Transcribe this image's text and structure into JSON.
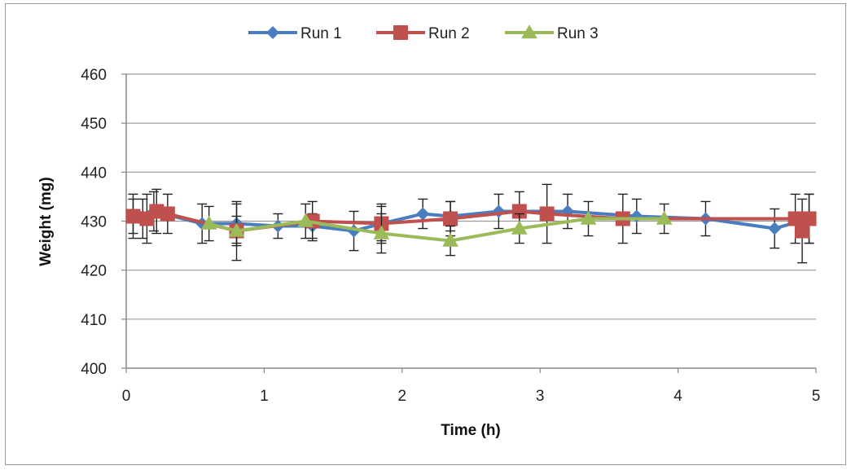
{
  "chart_data": {
    "type": "line",
    "title": "",
    "xlabel": "Time (h)",
    "ylabel": "Weight (mg)",
    "xlim": [
      0,
      5
    ],
    "ylim": [
      400,
      460
    ],
    "x_ticks": [
      "0",
      "1",
      "2",
      "3",
      "4",
      "5"
    ],
    "y_ticks": [
      "400",
      "410",
      "420",
      "430",
      "440",
      "450",
      "460"
    ],
    "grid": "horizontal",
    "legend_position": "top",
    "error_bars": true,
    "series": [
      {
        "name": "Run 1",
        "color": "#4a7dbf",
        "marker": "diamond",
        "points": [
          {
            "x": 0.05,
            "y": 431,
            "err": 3.5
          },
          {
            "x": 0.12,
            "y": 430.5,
            "err": 4
          },
          {
            "x": 0.2,
            "y": 432,
            "err": 4
          },
          {
            "x": 0.55,
            "y": 429.5,
            "err": 4
          },
          {
            "x": 0.8,
            "y": 429.5,
            "err": 4
          },
          {
            "x": 1.1,
            "y": 429,
            "err": 2.5
          },
          {
            "x": 1.35,
            "y": 429,
            "err": 2.5
          },
          {
            "x": 1.65,
            "y": 428,
            "err": 4
          },
          {
            "x": 1.85,
            "y": 429.5,
            "err": 3.5
          },
          {
            "x": 2.15,
            "y": 431.5,
            "err": 3
          },
          {
            "x": 2.35,
            "y": 431,
            "err": 3
          },
          {
            "x": 2.7,
            "y": 432,
            "err": 3.5
          },
          {
            "x": 3.2,
            "y": 432,
            "err": 3.5
          },
          {
            "x": 3.7,
            "y": 431,
            "err": 3.5
          },
          {
            "x": 4.2,
            "y": 430.5,
            "err": 3.5
          },
          {
            "x": 4.7,
            "y": 428.5,
            "err": 4
          },
          {
            "x": 4.95,
            "y": 430.5,
            "err": 5
          }
        ]
      },
      {
        "name": "Run 2",
        "color": "#c0504d",
        "marker": "square",
        "points": [
          {
            "x": 0.05,
            "y": 431,
            "err": 4.5
          },
          {
            "x": 0.15,
            "y": 430.5,
            "err": 5
          },
          {
            "x": 0.22,
            "y": 432,
            "err": 4.5
          },
          {
            "x": 0.3,
            "y": 431.5,
            "err": 4
          },
          {
            "x": 0.8,
            "y": 428,
            "err": 6
          },
          {
            "x": 1.35,
            "y": 430,
            "err": 4
          },
          {
            "x": 1.85,
            "y": 429.5,
            "err": 4
          },
          {
            "x": 2.35,
            "y": 430.5,
            "err": 3.5
          },
          {
            "x": 2.85,
            "y": 432,
            "err": 4
          },
          {
            "x": 3.05,
            "y": 431.5,
            "err": 6
          },
          {
            "x": 3.6,
            "y": 430.5,
            "err": 5
          },
          {
            "x": 4.85,
            "y": 430.5,
            "err": 5
          },
          {
            "x": 4.9,
            "y": 428,
            "err": 6.5
          },
          {
            "x": 4.95,
            "y": 430.5,
            "err": 5
          }
        ]
      },
      {
        "name": "Run 3",
        "color": "#9bbb59",
        "marker": "triangle",
        "points": [
          {
            "x": 0.6,
            "y": 429.5,
            "err": 3.5
          },
          {
            "x": 0.8,
            "y": 428,
            "err": 3
          },
          {
            "x": 1.3,
            "y": 430,
            "err": 3.5
          },
          {
            "x": 1.85,
            "y": 427.5,
            "err": 4
          },
          {
            "x": 2.35,
            "y": 426,
            "err": 3
          },
          {
            "x": 2.85,
            "y": 428.5,
            "err": 3
          },
          {
            "x": 3.35,
            "y": 430.5,
            "err": 3.5
          },
          {
            "x": 3.9,
            "y": 430.5,
            "err": 3
          }
        ]
      }
    ]
  }
}
